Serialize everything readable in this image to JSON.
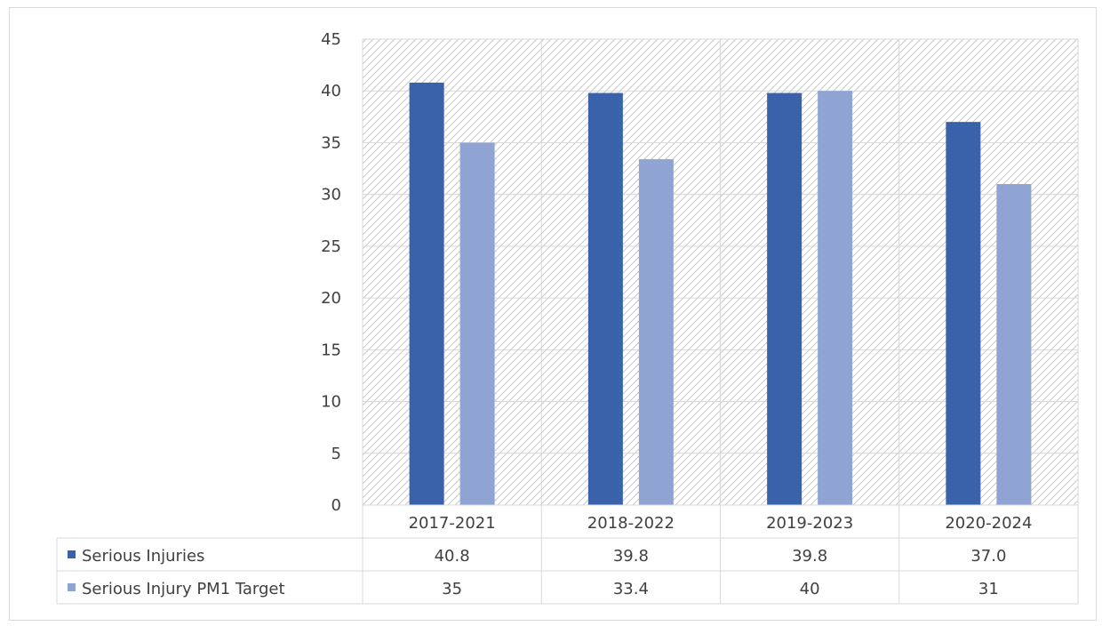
{
  "chart_data": {
    "type": "bar",
    "title": "",
    "xlabel": "",
    "ylabel": "",
    "categories": [
      "2017-2021",
      "2018-2022",
      "2019-2023",
      "2020-2024"
    ],
    "ylim": [
      0,
      45
    ],
    "yticks": [
      0,
      5,
      10,
      15,
      20,
      25,
      30,
      35,
      40,
      45
    ],
    "grid": true,
    "legend": "data-table",
    "series": [
      {
        "name": "Serious Injuries",
        "values": [
          40.8,
          39.8,
          39.8,
          37.0
        ],
        "labels": [
          "40.8",
          "39.8",
          "39.8",
          "37.0"
        ],
        "color": "#3a62ab"
      },
      {
        "name": "Serious Injury PM1 Target",
        "values": [
          35,
          33.4,
          40,
          31
        ],
        "labels": [
          "35",
          "33.4",
          "40",
          "31"
        ],
        "color": "#90a4d4"
      }
    ]
  }
}
